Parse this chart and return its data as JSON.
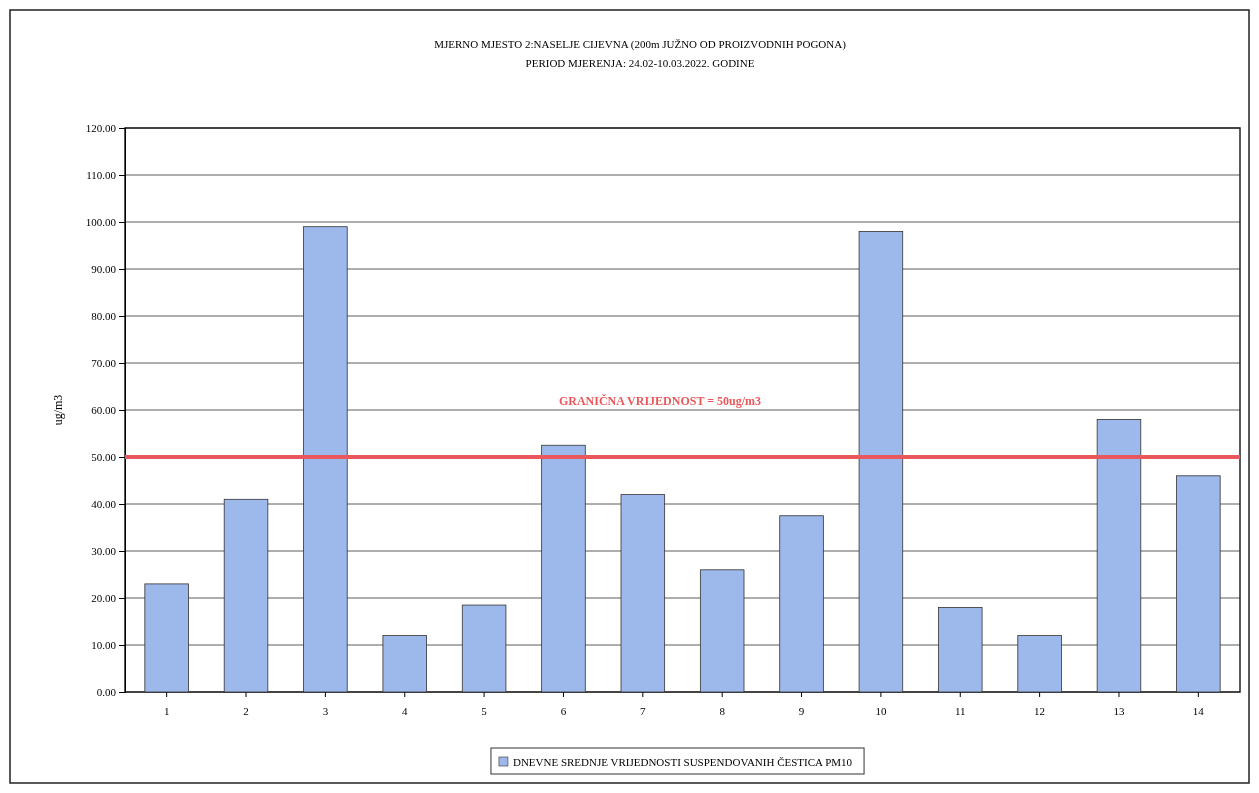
{
  "chart_data": {
    "type": "bar",
    "title": "MJERNO MJESTO 2:NASELJE CIJEVNA  (200m JUŽNO OD PROIZVODNIH POGONA)",
    "subtitle": "PERIOD MJERENJA: 24.02-10.03.2022. GODINE",
    "ylabel": "ug/m3",
    "categories": [
      "1",
      "2",
      "3",
      "4",
      "5",
      "6",
      "7",
      "8",
      "9",
      "10",
      "11",
      "12",
      "13",
      "14"
    ],
    "series": [
      {
        "name": "DNEVNE SREDNJE VRIJEDNOSTI SUSPENDOVANIH ČESTICA PM10",
        "color": "#9db8ea",
        "values": [
          23,
          41,
          99,
          12,
          18.5,
          52.5,
          42,
          26,
          37.5,
          98,
          18,
          12,
          58,
          46
        ]
      }
    ],
    "ylim": [
      0,
      120
    ],
    "yticks": [
      {
        "value": 0,
        "label": "0.00"
      },
      {
        "value": 10,
        "label": "10.00"
      },
      {
        "value": 20,
        "label": "20.00"
      },
      {
        "value": 30,
        "label": "30.00"
      },
      {
        "value": 40,
        "label": "40.00"
      },
      {
        "value": 50,
        "label": "50.00"
      },
      {
        "value": 60,
        "label": "60.00"
      },
      {
        "value": 70,
        "label": "70.00"
      },
      {
        "value": 80,
        "label": "80.00"
      },
      {
        "value": 90,
        "label": "90.00"
      },
      {
        "value": 100,
        "label": "100.00"
      },
      {
        "value": 110,
        "label": "110.00"
      },
      {
        "value": 120,
        "label": "120.00"
      }
    ],
    "grid": "y",
    "legend": "bottom",
    "ref_lines": [
      {
        "axis": "y",
        "value": 50,
        "label": "GRANIČNA VRIJEDNOST = 50ug/m3",
        "color": "#e8585c"
      }
    ]
  }
}
